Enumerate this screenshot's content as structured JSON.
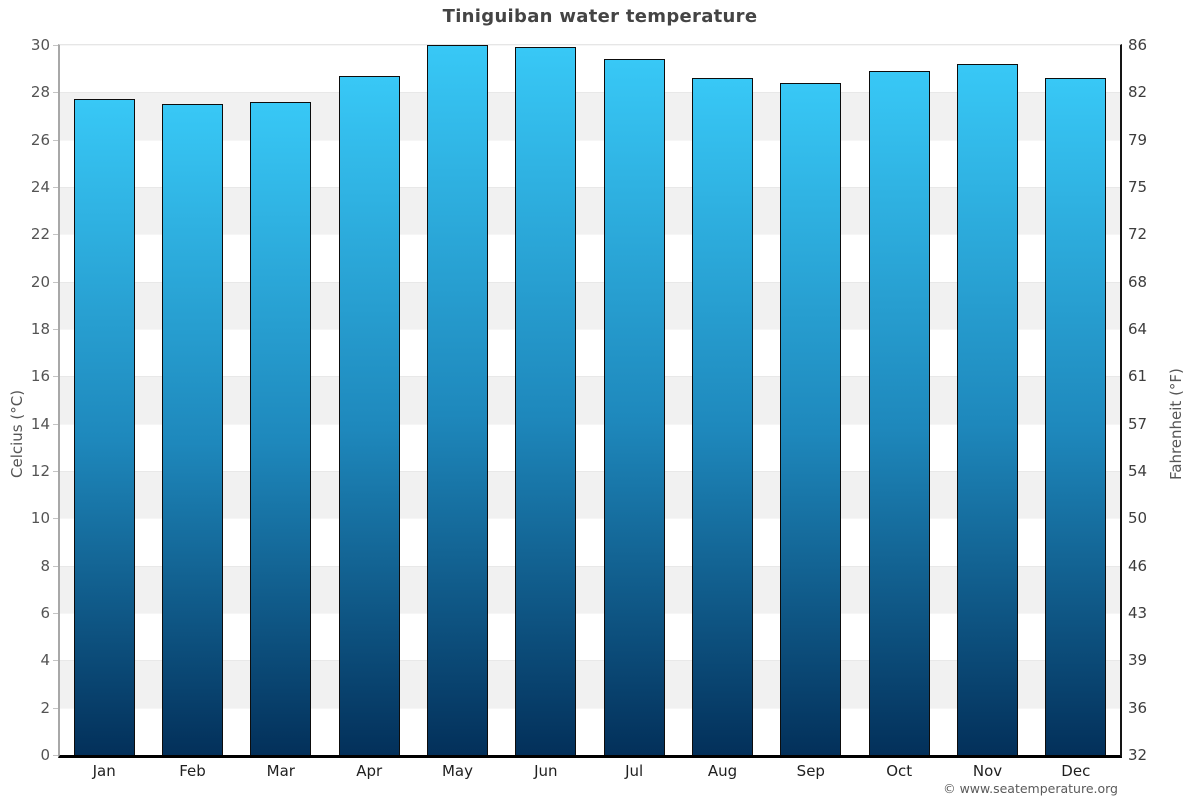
{
  "chart_data": {
    "type": "bar",
    "title": "Tiniguiban water temperature",
    "categories": [
      "Jan",
      "Feb",
      "Mar",
      "Apr",
      "May",
      "Jun",
      "Jul",
      "Aug",
      "Sep",
      "Oct",
      "Nov",
      "Dec"
    ],
    "values": [
      27.7,
      27.5,
      27.6,
      28.7,
      30.0,
      29.9,
      29.4,
      28.6,
      28.4,
      28.9,
      29.2,
      28.6
    ],
    "values_unit": "celsius",
    "ylabel_left": "Celcius (°C)",
    "ylabel_right": "Fahrenheit (°F)",
    "ylim": [
      0,
      30
    ],
    "yticks_celsius": [
      0,
      2,
      4,
      6,
      8,
      10,
      12,
      14,
      16,
      18,
      20,
      22,
      24,
      26,
      28,
      30
    ],
    "yticks_fahrenheit": [
      32,
      36,
      39,
      43,
      46,
      50,
      54,
      57,
      61,
      64,
      68,
      72,
      75,
      79,
      82,
      86
    ],
    "grid": "alternating horizontal bands every 2 degrees C",
    "legend": "none",
    "footer": "© www.seatemperature.org",
    "colors": {
      "bar_gradient_top": "#38c8f6",
      "bar_gradient_mid": "#1e88bc",
      "bar_gradient_bottom": "#03305a",
      "bar_border": "#0d0d0d",
      "band_gray": "#f1f1f1",
      "band_white": "#ffffff",
      "title_text": "#444444",
      "tick_text": "#545454",
      "month_text": "#1f1f1f",
      "left_spine": "#a8a8a8",
      "right_spine": "#151515",
      "bottom_spine": "#000000"
    }
  }
}
